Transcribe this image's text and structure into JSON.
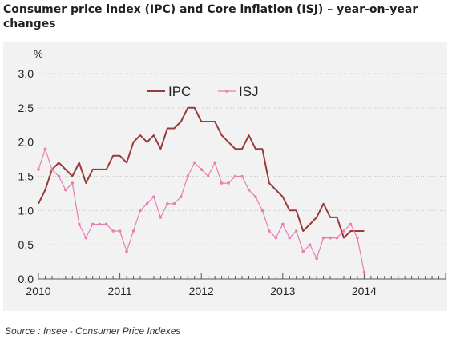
{
  "title": "Consumer price index (IPC) and Core inflation (ISJ) – year-on-year changes",
  "source": "Source : Insee - Consumer Price Indexes",
  "chart_data": {
    "type": "line",
    "title": "Consumer price index (IPC) and Core inflation (ISJ) – year-on-year changes",
    "ylabel": "%",
    "xlabel": "",
    "ylim": [
      0,
      3
    ],
    "xlim": [
      2010,
      2015
    ],
    "yticks": [
      "0,0",
      "0,5",
      "1,0",
      "1,5",
      "2,0",
      "2,5",
      "3,0"
    ],
    "xticks": [
      "2010",
      "2011",
      "2012",
      "2013",
      "2014"
    ],
    "grid": "horizontal",
    "legend": "top-center",
    "x_monthly_from": "2010-01",
    "series": [
      {
        "name": "IPC",
        "color": "#9b3a3a",
        "marker": "none",
        "values": [
          1.1,
          1.3,
          1.6,
          1.7,
          1.6,
          1.5,
          1.7,
          1.4,
          1.6,
          1.6,
          1.6,
          1.8,
          1.8,
          1.7,
          2.0,
          2.1,
          2.0,
          2.1,
          1.9,
          2.2,
          2.2,
          2.3,
          2.5,
          2.5,
          2.3,
          2.3,
          2.3,
          2.1,
          2.0,
          1.9,
          1.9,
          2.1,
          1.9,
          1.9,
          1.4,
          1.3,
          1.2,
          1.0,
          1.0,
          0.7,
          0.8,
          0.9,
          1.1,
          0.9,
          0.9,
          0.6,
          0.7,
          0.7,
          0.7
        ]
      },
      {
        "name": "ISJ",
        "color": "#e87fb0",
        "marker": "dot",
        "values": [
          1.6,
          1.9,
          1.6,
          1.5,
          1.3,
          1.4,
          0.8,
          0.6,
          0.8,
          0.8,
          0.8,
          0.7,
          0.7,
          0.4,
          0.7,
          1.0,
          1.1,
          1.2,
          0.9,
          1.1,
          1.1,
          1.2,
          1.5,
          1.7,
          1.6,
          1.5,
          1.7,
          1.4,
          1.4,
          1.5,
          1.5,
          1.3,
          1.2,
          1.0,
          0.7,
          0.6,
          0.8,
          0.6,
          0.7,
          0.4,
          0.5,
          0.3,
          0.6,
          0.6,
          0.6,
          0.7,
          0.8,
          0.6,
          0.1
        ]
      }
    ]
  }
}
